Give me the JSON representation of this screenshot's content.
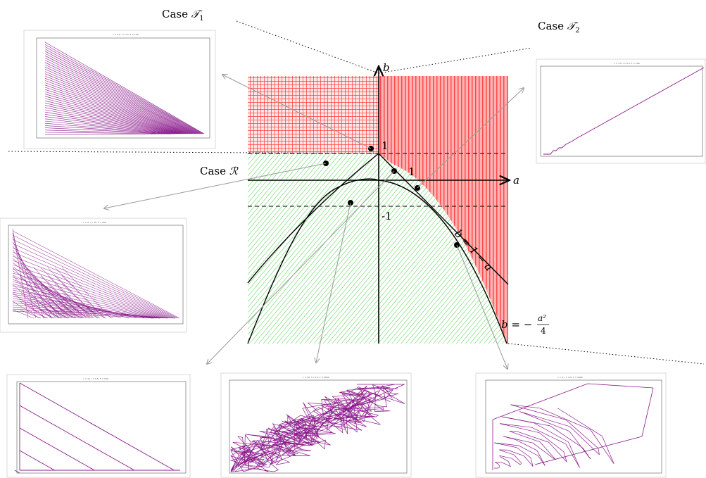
{
  "labels": {
    "case_t1_prefix": "Case",
    "case_t1_symbol": "𝒯",
    "case_t1_sub": "1",
    "case_t2_prefix": "Case",
    "case_t2_symbol": "𝒯",
    "case_t2_sub": "2",
    "case_r_prefix": "Case",
    "case_r_symbol": "ℛ"
  },
  "axes": {
    "x_label": "a",
    "y_label": "b",
    "tick_pos_b": "1",
    "tick_pos_a": "1",
    "tick_neg_b": "-1"
  },
  "curves": {
    "line_label": "b = 1 − a",
    "parabola_label_lhs": "b = −",
    "parabola_num": "a²",
    "parabola_den": "4"
  },
  "colors": {
    "red_region": "#ff3a3a",
    "red_fill": "#ffb0b0",
    "green_region": "#33cc33",
    "trajectory": "#8b1a8b",
    "pointer": "#9a9a9a"
  },
  "thumbnails": {
    "t1": "c = 0.5, l = 1.5, T = 100",
    "t2": "c = 1.5, l = 0.5, T = 100",
    "r1": "c = 2, l = 10, T = 100",
    "r2": "c = 11, l = 0.5, T = 100",
    "r3": "c = 10, l = 0.5, T = 2000",
    "r4": "c = 5, l = 2.5, T = 2000"
  }
}
